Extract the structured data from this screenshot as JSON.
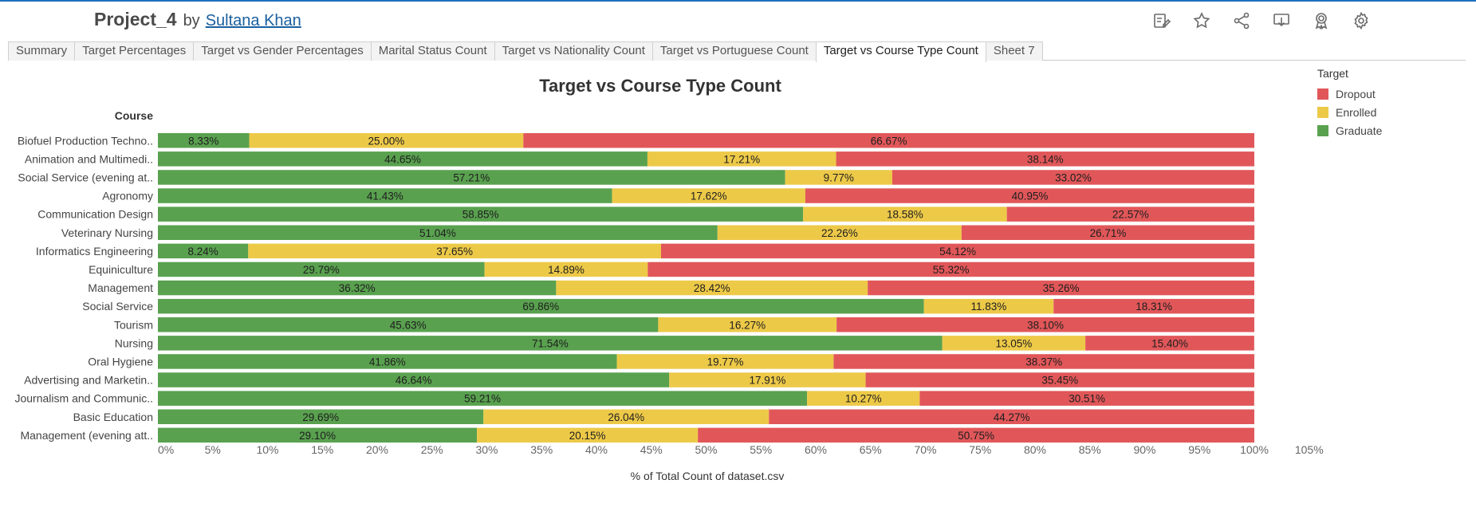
{
  "header": {
    "project_title": "Project_4",
    "by": "by",
    "author": "Sultana Khan"
  },
  "toolbar": {
    "icons": [
      "edit-icon",
      "star-icon",
      "share-icon",
      "download-icon",
      "badge-icon",
      "gear-icon"
    ]
  },
  "tabs": [
    {
      "label": "Summary",
      "active": false
    },
    {
      "label": "Target Percentages",
      "active": false
    },
    {
      "label": "Target vs Gender Percentages",
      "active": false
    },
    {
      "label": "Marital Status Count",
      "active": false
    },
    {
      "label": "Target vs Nationality Count",
      "active": false
    },
    {
      "label": "Target vs Portuguese Count",
      "active": false
    },
    {
      "label": "Target vs Course Type Count",
      "active": true
    },
    {
      "label": "Sheet 7",
      "active": false
    }
  ],
  "legend": {
    "title": "Target",
    "items": [
      {
        "label": "Dropout",
        "color": "#e15759"
      },
      {
        "label": "Enrolled",
        "color": "#edc948"
      },
      {
        "label": "Graduate",
        "color": "#59a14f"
      }
    ]
  },
  "chart_data": {
    "type": "bar",
    "orientation": "horizontal",
    "stacked": true,
    "title": "Target vs Course Type Count",
    "xlabel": "% of Total Count of dataset.csv",
    "ylabel": "Course",
    "xlim": [
      0,
      105
    ],
    "x_ticks": [
      "0%",
      "5%",
      "10%",
      "15%",
      "20%",
      "25%",
      "30%",
      "35%",
      "40%",
      "45%",
      "50%",
      "55%",
      "60%",
      "65%",
      "70%",
      "75%",
      "80%",
      "85%",
      "90%",
      "95%",
      "100%",
      "105%"
    ],
    "categories": [
      "Biofuel Production Techno..",
      "Animation and Multimedi..",
      "Social Service (evening at..",
      "Agronomy",
      "Communication Design",
      "Veterinary Nursing",
      "Informatics Engineering",
      "Equiniculture",
      "Management",
      "Social Service",
      "Tourism",
      "Nursing",
      "Oral Hygiene",
      "Advertising and Marketin..",
      "Journalism and Communic..",
      "Basic Education",
      "Management (evening att.."
    ],
    "series": [
      {
        "name": "Graduate",
        "color": "#59a14f",
        "values": [
          8.33,
          44.65,
          57.21,
          41.43,
          58.85,
          51.04,
          8.24,
          29.79,
          36.32,
          69.86,
          45.63,
          71.54,
          41.86,
          46.64,
          59.21,
          29.69,
          29.1
        ],
        "labels": [
          "8.33%",
          "44.65%",
          "57.21%",
          "41.43%",
          "58.85%",
          "51.04%",
          "8.24%",
          "29.79%",
          "36.32%",
          "69.86%",
          "45.63%",
          "71.54%",
          "41.86%",
          "46.64%",
          "59.21%",
          "29.69%",
          "29.10%"
        ]
      },
      {
        "name": "Enrolled",
        "color": "#edc948",
        "values": [
          25.0,
          17.21,
          9.77,
          17.62,
          18.58,
          22.26,
          37.65,
          14.89,
          28.42,
          11.83,
          16.27,
          13.05,
          19.77,
          17.91,
          10.27,
          26.04,
          20.15
        ],
        "labels": [
          "25.00%",
          "17.21%",
          "9.77%",
          "17.62%",
          "18.58%",
          "22.26%",
          "37.65%",
          "14.89%",
          "28.42%",
          "11.83%",
          "16.27%",
          "13.05%",
          "19.77%",
          "17.91%",
          "10.27%",
          "26.04%",
          "20.15%"
        ]
      },
      {
        "name": "Dropout",
        "color": "#e15759",
        "values": [
          66.67,
          38.14,
          33.02,
          40.95,
          22.57,
          26.71,
          54.12,
          55.32,
          35.26,
          18.31,
          38.1,
          15.4,
          38.37,
          35.45,
          30.51,
          44.27,
          50.75
        ],
        "labels": [
          "66.67%",
          "38.14%",
          "33.02%",
          "40.95%",
          "22.57%",
          "26.71%",
          "54.12%",
          "55.32%",
          "35.26%",
          "18.31%",
          "38.10%",
          "15.40%",
          "38.37%",
          "35.45%",
          "30.51%",
          "44.27%",
          "50.75%"
        ]
      }
    ]
  }
}
